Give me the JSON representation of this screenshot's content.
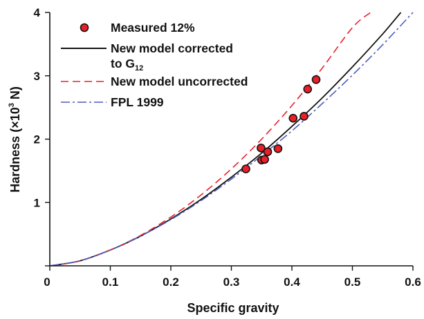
{
  "chart_data": {
    "type": "scatter",
    "xlabel": "Specific gravity",
    "ylabel_parts": [
      "Hardness (×10",
      "3",
      " N)"
    ],
    "xlim": [
      0,
      0.6
    ],
    "ylim": [
      0,
      4
    ],
    "xticks": [
      "0",
      "0.1",
      "0.2",
      "0.3",
      "0.4",
      "0.5",
      "0.6"
    ],
    "yticks": [
      "",
      "1",
      "2",
      "3",
      "4"
    ],
    "x_axis_origin_label": "0",
    "legend": {
      "placement": "top-left",
      "entries": [
        {
          "series": "measured",
          "lines": [
            "Measured 12%"
          ]
        },
        {
          "series": "corrected",
          "lines": [
            "New model corrected",
            "to G"
          ],
          "subscript": "12"
        },
        {
          "series": "uncorrected",
          "lines": [
            "New model uncorrected"
          ]
        },
        {
          "series": "fpl",
          "lines": [
            "FPL 1999"
          ]
        }
      ]
    },
    "series": [
      {
        "id": "measured",
        "name": "Measured 12%",
        "kind": "points",
        "color": "#e8202a",
        "points": [
          {
            "x": 0.324,
            "y": 1.53
          },
          {
            "x": 0.349,
            "y": 1.86
          },
          {
            "x": 0.35,
            "y": 1.67
          },
          {
            "x": 0.355,
            "y": 1.68
          },
          {
            "x": 0.36,
            "y": 1.8
          },
          {
            "x": 0.377,
            "y": 1.85
          },
          {
            "x": 0.402,
            "y": 2.33
          },
          {
            "x": 0.42,
            "y": 2.36
          },
          {
            "x": 0.426,
            "y": 2.79
          },
          {
            "x": 0.44,
            "y": 2.94
          }
        ]
      },
      {
        "id": "corrected",
        "name": "New model corrected to G12",
        "kind": "curve",
        "color": "#111111",
        "dash": "solid",
        "x": [
          0,
          0.05,
          0.1,
          0.15,
          0.2,
          0.25,
          0.3,
          0.35,
          0.4,
          0.45,
          0.5,
          0.55,
          0.58
        ],
        "y": [
          0,
          0.08,
          0.25,
          0.47,
          0.74,
          1.05,
          1.4,
          1.78,
          2.2,
          2.65,
          3.14,
          3.66,
          4.0
        ]
      },
      {
        "id": "uncorrected",
        "name": "New model uncorrected",
        "kind": "curve",
        "color": "#e8202a",
        "dash": "dashed",
        "x": [
          0,
          0.05,
          0.1,
          0.15,
          0.2,
          0.25,
          0.3,
          0.35,
          0.4,
          0.45,
          0.5,
          0.53
        ],
        "y": [
          0,
          0.08,
          0.25,
          0.48,
          0.77,
          1.12,
          1.53,
          2.0,
          2.53,
          3.12,
          3.76,
          4.0
        ]
      },
      {
        "id": "fpl",
        "name": "FPL 1999",
        "kind": "curve",
        "color": "#4a5cc0",
        "dash": "dashdot",
        "x": [
          0,
          0.05,
          0.1,
          0.15,
          0.2,
          0.25,
          0.3,
          0.35,
          0.4,
          0.45,
          0.5,
          0.55,
          0.6
        ],
        "y": [
          0,
          0.08,
          0.25,
          0.47,
          0.73,
          1.03,
          1.37,
          1.74,
          2.13,
          2.56,
          3.01,
          3.49,
          4.0
        ]
      }
    ],
    "grid": false
  }
}
